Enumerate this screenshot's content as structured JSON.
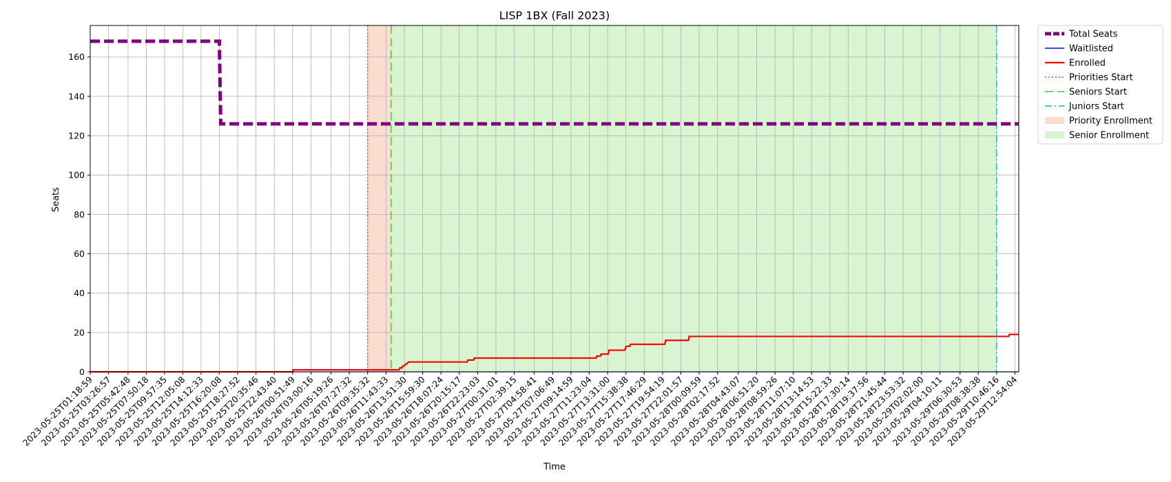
{
  "chart_data": {
    "type": "line",
    "title": "LISP 1BX (Fall 2023)",
    "xlabel": "Time",
    "ylabel": "Seats",
    "ylim": [
      0,
      176
    ],
    "xlim": [
      "2023-05-25T01:18:59",
      "2023-05-29T13:21:00"
    ],
    "y_ticks": [
      0,
      20,
      40,
      60,
      80,
      100,
      120,
      140,
      160
    ],
    "x_tick_labels": [
      "2023-05-25T01:18:59",
      "2023-05-25T03:26:57",
      "2023-05-25T05:42:48",
      "2023-05-25T07:50:18",
      "2023-05-25T09:57:35",
      "2023-05-25T12:05:08",
      "2023-05-25T14:12:33",
      "2023-05-25T16:20:08",
      "2023-05-25T18:27:52",
      "2023-05-25T20:35:46",
      "2023-05-25T22:43:40",
      "2023-05-26T00:51:49",
      "2023-05-26T03:00:16",
      "2023-05-26T05:19:26",
      "2023-05-26T07:27:32",
      "2023-05-26T09:35:32",
      "2023-05-26T11:43:33",
      "2023-05-26T13:51:30",
      "2023-05-26T15:59:30",
      "2023-05-26T18:07:24",
      "2023-05-26T20:15:17",
      "2023-05-26T22:23:03",
      "2023-05-27T00:31:01",
      "2023-05-27T02:39:15",
      "2023-05-27T04:58:41",
      "2023-05-27T07:06:49",
      "2023-05-27T09:14:59",
      "2023-05-27T11:23:04",
      "2023-05-27T13:31:00",
      "2023-05-27T15:38:38",
      "2023-05-27T17:46:29",
      "2023-05-27T19:54:19",
      "2023-05-27T22:01:57",
      "2023-05-28T00:09:59",
      "2023-05-28T02:17:52",
      "2023-05-28T04:43:07",
      "2023-05-28T06:51:20",
      "2023-05-28T08:59:26",
      "2023-05-28T11:07:10",
      "2023-05-28T13:14:53",
      "2023-05-28T15:22:33",
      "2023-05-28T17:30:14",
      "2023-05-28T19:37:56",
      "2023-05-28T21:45:44",
      "2023-05-28T23:53:32",
      "2023-05-29T02:02:00",
      "2023-05-29T04:10:11",
      "2023-05-29T06:30:53",
      "2023-05-29T08:38:38",
      "2023-05-29T10:46:16",
      "2023-05-29T12:54:04"
    ],
    "grid": true,
    "legend_position": "outside-upper-right",
    "series": [
      {
        "name": "Total Seats",
        "style": "dashed",
        "color": "#800080",
        "x": [
          "2023-05-25T01:18:59",
          "2023-05-25T16:20:08",
          "2023-05-25T16:30:00",
          "2023-05-29T13:21:00"
        ],
        "values": [
          168,
          168,
          126,
          126
        ]
      },
      {
        "name": "Waitlisted",
        "style": "solid",
        "color": "#0000ff",
        "x": [
          "2023-05-25T01:18:59",
          "2023-05-29T13:21:00"
        ],
        "values": [
          0,
          0
        ]
      },
      {
        "name": "Enrolled",
        "style": "solid",
        "color": "#ff0000",
        "x": [
          "2023-05-25T01:18:59",
          "2023-05-26T00:51:49",
          "2023-05-26T00:55:00",
          "2023-05-26T12:50:00",
          "2023-05-26T12:55:00",
          "2023-05-26T13:15:00",
          "2023-05-26T13:20:00",
          "2023-05-26T13:35:00",
          "2023-05-26T13:40:00",
          "2023-05-26T13:51:30",
          "2023-05-26T14:00:00",
          "2023-05-26T14:10:00",
          "2023-05-26T14:20:00",
          "2023-05-26T14:35:00",
          "2023-05-26T14:45:00",
          "2023-05-26T21:10:00",
          "2023-05-26T21:15:00",
          "2023-05-26T21:55:00",
          "2023-05-26T22:00:00",
          "2023-05-27T12:10:00",
          "2023-05-27T12:15:00",
          "2023-05-27T12:40:00",
          "2023-05-27T12:45:00",
          "2023-05-27T13:35:00",
          "2023-05-27T13:40:00",
          "2023-05-27T15:30:00",
          "2023-05-27T15:40:00",
          "2023-05-27T16:05:00",
          "2023-05-27T16:10:00",
          "2023-05-27T20:10:00",
          "2023-05-27T20:15:00",
          "2023-05-27T22:55:00",
          "2023-05-27T23:00:00",
          "2023-05-29T12:10:00",
          "2023-05-29T12:15:00",
          "2023-05-29T13:21:00"
        ],
        "values": [
          0,
          0,
          1,
          1,
          1,
          1,
          2,
          2,
          3,
          3,
          4,
          4,
          5,
          5,
          5,
          5,
          6,
          6,
          7,
          7,
          8,
          8,
          9,
          9,
          11,
          11,
          13,
          13,
          14,
          14,
          16,
          16,
          18,
          18,
          19,
          19
        ]
      }
    ],
    "reference_lines": [
      {
        "name": "Priorities Start",
        "x": "2023-05-26T09:35:32",
        "style": "dotted",
        "color": "#ff4500"
      },
      {
        "name": "Seniors Start",
        "x": "2023-05-26T12:20:00",
        "style": "dashed",
        "color": "#32cd32"
      },
      {
        "name": "Juniors Start",
        "x": "2023-05-29T10:46:16",
        "style": "dashdot",
        "color": "#00bfbf"
      }
    ],
    "shaded_regions": [
      {
        "name": "Priority Enrollment",
        "x_start": "2023-05-26T09:35:32",
        "x_end": "2023-05-26T12:20:00",
        "color": "#f4c2a8"
      },
      {
        "name": "Senior Enrollment",
        "x_start": "2023-05-26T12:20:00",
        "x_end": "2023-05-29T10:46:16",
        "color": "#b9ebaa"
      }
    ],
    "legend": [
      {
        "label": "Total Seats",
        "kind": "line",
        "style": "dashed",
        "color": "#800080"
      },
      {
        "label": "Waitlisted",
        "kind": "line",
        "style": "solid",
        "color": "#0000ff"
      },
      {
        "label": "Enrolled",
        "kind": "line",
        "style": "solid",
        "color": "#ff0000"
      },
      {
        "label": "Priorities Start",
        "kind": "line",
        "style": "dotted",
        "color": "#ff4500"
      },
      {
        "label": "Seniors Start",
        "kind": "line",
        "style": "dashed",
        "color": "#32cd32"
      },
      {
        "label": "Juniors Start",
        "kind": "line",
        "style": "dashdot",
        "color": "#00bfbf"
      },
      {
        "label": "Priority Enrollment",
        "kind": "patch",
        "color": "#f4c2a8"
      },
      {
        "label": "Senior Enrollment",
        "kind": "patch",
        "color": "#b9ebaa"
      }
    ]
  }
}
